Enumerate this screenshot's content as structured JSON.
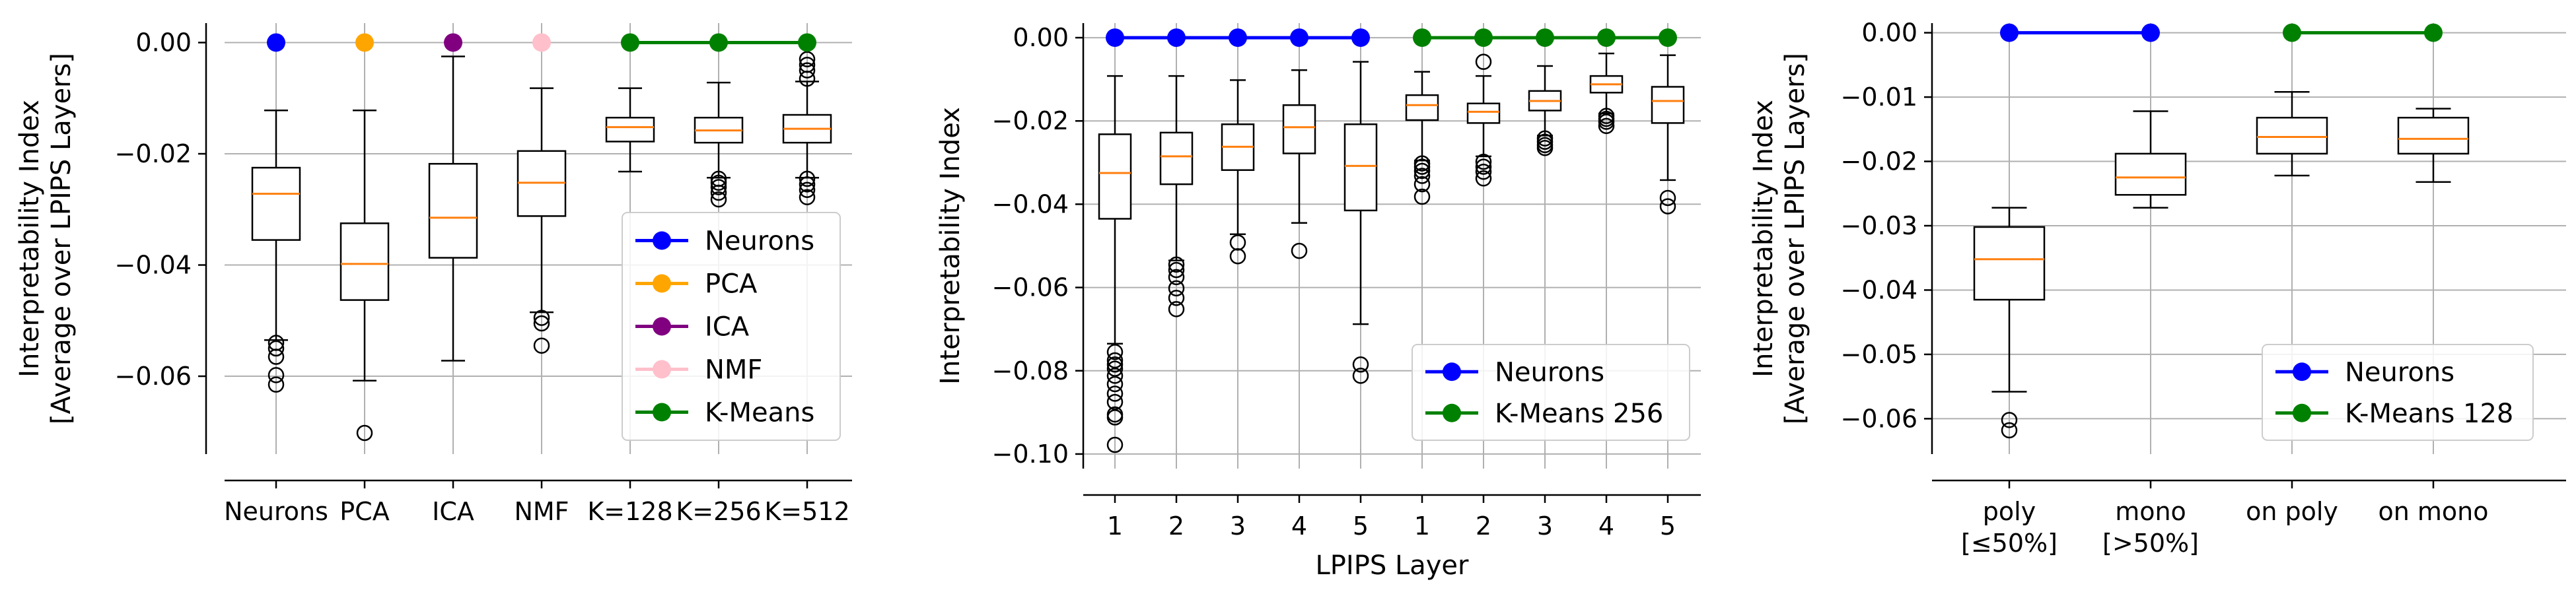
{
  "chart_data": [
    {
      "type": "box",
      "title": "",
      "xlabel": "",
      "ylabel": "Interpretability Index",
      "ylabel2": "[Average over LPIPS Layers]",
      "ylim": [
        -0.074,
        0.0035
      ],
      "yticks": [
        0.0,
        -0.02,
        -0.04,
        -0.06
      ],
      "yticklabels": [
        "0.00",
        "−0.02",
        "−0.04",
        "−0.06"
      ],
      "categories": [
        "Neurons",
        "PCA",
        "ICA",
        "NMF",
        "K=128",
        "K=256",
        "K=512"
      ],
      "boxes": [
        {
          "category": "Neurons",
          "whisker_low": -0.0535,
          "q1": -0.0355,
          "median": -0.0272,
          "q3": -0.0225,
          "whisker_high": -0.0122,
          "outliers": [
            -0.054,
            -0.055,
            -0.0565,
            -0.0598,
            -0.0615
          ]
        },
        {
          "category": "PCA",
          "whisker_low": -0.0608,
          "q1": -0.0463,
          "median": -0.0398,
          "q3": -0.0325,
          "whisker_high": -0.0122,
          "outliers": [
            -0.0702
          ]
        },
        {
          "category": "ICA",
          "whisker_low": -0.0572,
          "q1": -0.0387,
          "median": -0.0315,
          "q3": -0.0218,
          "whisker_high": -0.0025,
          "outliers": []
        },
        {
          "category": "NMF",
          "whisker_low": -0.0485,
          "q1": -0.0312,
          "median": -0.0252,
          "q3": -0.0195,
          "whisker_high": -0.0082,
          "outliers": [
            -0.0495,
            -0.0505,
            -0.0545
          ]
        },
        {
          "category": "K=128",
          "whisker_low": -0.0232,
          "q1": -0.0178,
          "median": -0.0152,
          "q3": -0.0135,
          "whisker_high": -0.0082,
          "outliers": []
        },
        {
          "category": "K=256",
          "whisker_low": -0.0243,
          "q1": -0.018,
          "median": -0.0158,
          "q3": -0.0135,
          "whisker_high": -0.0072,
          "outliers": [
            -0.0245,
            -0.0252,
            -0.026,
            -0.027,
            -0.0282
          ]
        },
        {
          "category": "K=512",
          "whisker_low": -0.0243,
          "q1": -0.018,
          "median": -0.0155,
          "q3": -0.013,
          "whisker_high": -0.007,
          "outliers": [
            -0.003,
            -0.004,
            -0.005,
            -0.0065,
            -0.0245,
            -0.0255,
            -0.0265,
            -0.0278
          ]
        }
      ],
      "line_series": [
        {
          "name": "Neurons",
          "color": "#0000ff",
          "categories": [
            "Neurons"
          ],
          "values": [
            0.0
          ]
        },
        {
          "name": "PCA",
          "color": "#ffa500",
          "categories": [
            "PCA"
          ],
          "values": [
            0.0
          ]
        },
        {
          "name": "ICA",
          "color": "#800080",
          "categories": [
            "ICA"
          ],
          "values": [
            0.0
          ]
        },
        {
          "name": "NMF",
          "color": "#ffc0cb",
          "categories": [
            "NMF"
          ],
          "values": [
            0.0
          ]
        },
        {
          "name": "K-Means",
          "color": "#008000",
          "categories": [
            "K=128",
            "K=256",
            "K=512"
          ],
          "values": [
            0.0,
            0.0,
            0.0
          ]
        }
      ],
      "legend": {
        "placement": "lower-right",
        "entries": [
          "Neurons",
          "PCA",
          "ICA",
          "NMF",
          "K-Means"
        ]
      },
      "grid": true
    },
    {
      "type": "box",
      "title": "",
      "xlabel": "LPIPS Layer",
      "ylabel": "Interpretability Index",
      "ylabel2": "",
      "ylim": [
        -0.1035,
        0.0035
      ],
      "yticks": [
        0.0,
        -0.02,
        -0.04,
        -0.06,
        -0.08,
        -0.1
      ],
      "yticklabels": [
        "0.00",
        "−0.02",
        "−0.04",
        "−0.06",
        "−0.08",
        "−0.10"
      ],
      "categories": [
        "1",
        "2",
        "3",
        "4",
        "5",
        "1",
        "2",
        "3",
        "4",
        "5"
      ],
      "boxes": [
        {
          "category": "1",
          "whisker_low": -0.0735,
          "q1": -0.0435,
          "median": -0.0325,
          "q3": -0.0232,
          "whisker_high": -0.0092,
          "outliers": [
            -0.0755,
            -0.0775,
            -0.0785,
            -0.0795,
            -0.0812,
            -0.0832,
            -0.0855,
            -0.0875,
            -0.0905,
            -0.0912,
            -0.0978
          ]
        },
        {
          "category": "2",
          "whisker_low": -0.0535,
          "q1": -0.0352,
          "median": -0.0285,
          "q3": -0.0228,
          "whisker_high": -0.0092,
          "outliers": [
            -0.0545,
            -0.0558,
            -0.0575,
            -0.0602,
            -0.0625,
            -0.0652
          ]
        },
        {
          "category": "3",
          "whisker_low": -0.0472,
          "q1": -0.0318,
          "median": -0.0262,
          "q3": -0.0208,
          "whisker_high": -0.0102,
          "outliers": [
            -0.0492,
            -0.0525
          ]
        },
        {
          "category": "4",
          "whisker_low": -0.0445,
          "q1": -0.0278,
          "median": -0.0215,
          "q3": -0.0162,
          "whisker_high": -0.0078,
          "outliers": [
            -0.0512
          ]
        },
        {
          "category": "5",
          "whisker_low": -0.0688,
          "q1": -0.0415,
          "median": -0.0308,
          "q3": -0.0208,
          "whisker_high": -0.0058,
          "outliers": [
            -0.0785,
            -0.0812
          ]
        },
        {
          "category": "1",
          "whisker_low": -0.0295,
          "q1": -0.0198,
          "median": -0.0162,
          "q3": -0.0138,
          "whisker_high": -0.0082,
          "outliers": [
            -0.0302,
            -0.031,
            -0.032,
            -0.0332,
            -0.0352,
            -0.0382
          ]
        },
        {
          "category": "2",
          "whisker_low": -0.0285,
          "q1": -0.0205,
          "median": -0.0178,
          "q3": -0.0158,
          "whisker_high": -0.0092,
          "outliers": [
            -0.0058,
            -0.0298,
            -0.031,
            -0.0322,
            -0.0338
          ]
        },
        {
          "category": "3",
          "whisker_low": -0.0235,
          "q1": -0.0175,
          "median": -0.0152,
          "q3": -0.0128,
          "whisker_high": -0.0068,
          "outliers": [
            -0.0242,
            -0.025,
            -0.0258,
            -0.0265
          ]
        },
        {
          "category": "4",
          "whisker_low": -0.0182,
          "q1": -0.0132,
          "median": -0.0112,
          "q3": -0.0092,
          "whisker_high": -0.0038,
          "outliers": [
            -0.0188,
            -0.0195,
            -0.0202,
            -0.0212
          ]
        },
        {
          "category": "5",
          "whisker_low": -0.0342,
          "q1": -0.0205,
          "median": -0.0152,
          "q3": -0.0118,
          "whisker_high": -0.0042,
          "outliers": [
            -0.0385,
            -0.0405
          ]
        }
      ],
      "line_series": [
        {
          "name": "Neurons",
          "color": "#0000ff",
          "positions": [
            1,
            2,
            3,
            4,
            5
          ],
          "values": [
            0.0,
            0.0,
            0.0,
            0.0,
            0.0
          ]
        },
        {
          "name": "K-Means 256",
          "color": "#008000",
          "positions": [
            6,
            7,
            8,
            9,
            10
          ],
          "values": [
            0.0,
            0.0,
            0.0,
            0.0,
            0.0
          ]
        }
      ],
      "legend": {
        "placement": "lower-right",
        "entries": [
          "Neurons",
          "K-Means 256"
        ]
      },
      "grid": true
    },
    {
      "type": "box",
      "title": "",
      "xlabel": "",
      "ylabel": "Interpretability Index",
      "ylabel2": "[Average over LPIPS Layers]",
      "ylim": [
        -0.0655,
        0.0015
      ],
      "yticks": [
        0.0,
        -0.01,
        -0.02,
        -0.03,
        -0.04,
        -0.05,
        -0.06
      ],
      "yticklabels": [
        "0.00",
        "−0.01",
        "−0.02",
        "−0.03",
        "−0.04",
        "−0.05",
        "−0.06"
      ],
      "categories": [
        "poly",
        "mono",
        "on poly",
        "on mono"
      ],
      "category_sublabels": [
        "[≤50%]",
        "[>50%]",
        "",
        ""
      ],
      "boxes": [
        {
          "category": "poly",
          "whisker_low": -0.0558,
          "q1": -0.0415,
          "median": -0.0352,
          "q3": -0.0302,
          "whisker_high": -0.0272,
          "outliers": [
            -0.0602,
            -0.0618
          ]
        },
        {
          "category": "mono",
          "whisker_low": -0.0272,
          "q1": -0.0252,
          "median": -0.0225,
          "q3": -0.0188,
          "whisker_high": -0.0122,
          "outliers": []
        },
        {
          "category": "on poly",
          "whisker_low": -0.0222,
          "q1": -0.0188,
          "median": -0.0162,
          "q3": -0.0132,
          "whisker_high": -0.0092,
          "outliers": []
        },
        {
          "category": "on mono",
          "whisker_low": -0.0232,
          "q1": -0.0188,
          "median": -0.0165,
          "q3": -0.0132,
          "whisker_high": -0.0118,
          "outliers": []
        }
      ],
      "line_series": [
        {
          "name": "Neurons",
          "color": "#0000ff",
          "categories": [
            "poly",
            "mono"
          ],
          "values": [
            0.0,
            0.0
          ]
        },
        {
          "name": "K-Means 128",
          "color": "#008000",
          "categories": [
            "on poly",
            "on mono"
          ],
          "values": [
            0.0,
            0.0
          ]
        }
      ],
      "legend": {
        "placement": "lower-right",
        "entries": [
          "Neurons",
          "K-Means 128"
        ]
      },
      "grid": true
    }
  ]
}
